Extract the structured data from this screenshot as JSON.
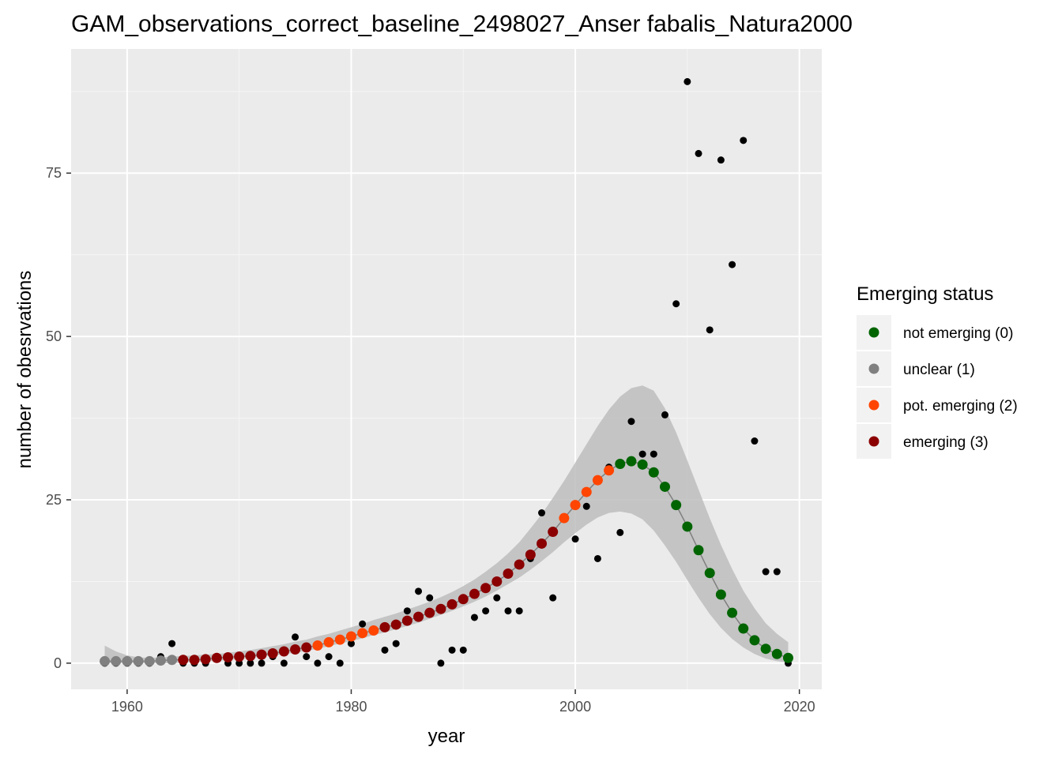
{
  "chart_data": {
    "type": "scatter",
    "title": "GAM_observations_correct_baseline_2498027_Anser fabalis_Natura2000",
    "xlabel": "year",
    "ylabel": "number of obesrvations",
    "xlim": [
      1955,
      2022
    ],
    "ylim": [
      -4,
      94
    ],
    "x_ticks": [
      1960,
      1980,
      2000,
      2020
    ],
    "y_ticks": [
      0,
      25,
      50,
      75
    ],
    "grid": true,
    "legend_position": "right",
    "colors": {
      "panel_bg": "#ebebeb",
      "grid_major": "#ffffff",
      "grid_minor": "#f5f5f5",
      "ribbon": "#bdbdbd",
      "line": "#7f7f7f",
      "observations": "#000000"
    },
    "legend": {
      "title": "Emerging status",
      "entries": [
        {
          "label": "not emerging (0)",
          "color": "#006400"
        },
        {
          "label": "unclear (1)",
          "color": "#808080"
        },
        {
          "label": "pot. emerging (2)",
          "color": "#ff4500"
        },
        {
          "label": "emerging (3)",
          "color": "#8b0000"
        }
      ]
    },
    "observations": {
      "x": [
        1958,
        1959,
        1960,
        1961,
        1962,
        1963,
        1964,
        1965,
        1966,
        1967,
        1968,
        1969,
        1970,
        1971,
        1972,
        1973,
        1974,
        1975,
        1976,
        1977,
        1978,
        1979,
        1980,
        1981,
        1983,
        1984,
        1985,
        1986,
        1987,
        1988,
        1989,
        1990,
        1991,
        1992,
        1993,
        1994,
        1995,
        1996,
        1997,
        1998,
        2000,
        2001,
        2002,
        2003,
        2004,
        2005,
        2006,
        2007,
        2008,
        2009,
        2010,
        2011,
        2012,
        2013,
        2014,
        2015,
        2016,
        2017,
        2018,
        2019
      ],
      "y": [
        0,
        0,
        0,
        0,
        0,
        1,
        3,
        0,
        0,
        0,
        1,
        0,
        0,
        0,
        0,
        1,
        0,
        4,
        1,
        0,
        1,
        0,
        3,
        6,
        2,
        3,
        8,
        11,
        10,
        0,
        2,
        2,
        7,
        8,
        10,
        8,
        8,
        16,
        23,
        10,
        19,
        24,
        16,
        30,
        20,
        37,
        32,
        32,
        38,
        55,
        89,
        78,
        51,
        77,
        61,
        80,
        34,
        14,
        14,
        0
      ]
    },
    "fit": {
      "x": [
        1958,
        1959,
        1960,
        1961,
        1962,
        1963,
        1964,
        1965,
        1966,
        1967,
        1968,
        1969,
        1970,
        1971,
        1972,
        1973,
        1974,
        1975,
        1976,
        1977,
        1978,
        1979,
        1980,
        1981,
        1982,
        1983,
        1984,
        1985,
        1986,
        1987,
        1988,
        1989,
        1990,
        1991,
        1992,
        1993,
        1994,
        1995,
        1996,
        1997,
        1998,
        1999,
        2000,
        2001,
        2002,
        2003,
        2004,
        2005,
        2006,
        2007,
        2008,
        2009,
        2010,
        2011,
        2012,
        2013,
        2014,
        2015,
        2016,
        2017,
        2018,
        2019
      ],
      "y": [
        0.3,
        0.3,
        0.3,
        0.3,
        0.3,
        0.4,
        0.5,
        0.5,
        0.5,
        0.6,
        0.8,
        0.9,
        1.0,
        1.1,
        1.3,
        1.5,
        1.8,
        2.1,
        2.4,
        2.7,
        3.2,
        3.6,
        4.1,
        4.6,
        5.0,
        5.5,
        5.9,
        6.5,
        7.1,
        7.7,
        8.3,
        9.0,
        9.8,
        10.6,
        11.5,
        12.5,
        13.7,
        15.1,
        16.6,
        18.3,
        20.1,
        22.2,
        24.2,
        26.2,
        28.0,
        29.5,
        30.5,
        30.9,
        30.4,
        29.2,
        27.0,
        24.2,
        20.9,
        17.3,
        13.8,
        10.5,
        7.7,
        5.3,
        3.5,
        2.2,
        1.4,
        0.8
      ],
      "status": [
        1,
        1,
        1,
        1,
        1,
        1,
        1,
        3,
        3,
        3,
        3,
        3,
        3,
        3,
        3,
        3,
        3,
        3,
        3,
        2,
        2,
        2,
        2,
        2,
        2,
        3,
        3,
        3,
        3,
        3,
        3,
        3,
        3,
        3,
        3,
        3,
        3,
        3,
        3,
        3,
        3,
        2,
        2,
        2,
        2,
        2,
        0,
        0,
        0,
        0,
        0,
        0,
        0,
        0,
        0,
        0,
        0,
        0,
        0,
        0,
        0,
        0
      ],
      "ci_lower": [
        0,
        0,
        0,
        0,
        0,
        0,
        0,
        0.1,
        0.2,
        0.3,
        0.4,
        0.5,
        0.7,
        0.8,
        1.0,
        1.2,
        1.4,
        1.6,
        1.9,
        2.2,
        2.6,
        3.0,
        3.4,
        3.8,
        4.3,
        4.7,
        5.2,
        5.7,
        6.2,
        6.8,
        7.4,
        8.0,
        8.7,
        9.4,
        10.2,
        11.1,
        12.1,
        13.1,
        14.3,
        15.6,
        17.0,
        18.5,
        19.9,
        21.2,
        22.3,
        23.0,
        23.2,
        22.9,
        22.0,
        20.3,
        18.0,
        15.5,
        12.7,
        10.0,
        7.5,
        5.4,
        3.7,
        2.4,
        1.4,
        0.7,
        0.3,
        0.1
      ],
      "ci_upper": [
        2.7,
        1.8,
        1.2,
        0.9,
        0.8,
        0.9,
        1.0,
        1.1,
        1.2,
        1.3,
        1.4,
        1.6,
        1.8,
        2.0,
        2.3,
        2.6,
        2.9,
        3.3,
        3.6,
        4.1,
        4.5,
        5.0,
        5.5,
        6.0,
        6.6,
        7.1,
        7.6,
        8.2,
        8.8,
        9.4,
        10.1,
        10.9,
        11.8,
        12.8,
        14.0,
        15.3,
        16.8,
        18.5,
        20.6,
        22.8,
        25.3,
        27.9,
        30.7,
        33.5,
        36.3,
        38.8,
        40.8,
        42.1,
        42.5,
        41.7,
        39.0,
        35.3,
        31.0,
        26.6,
        22.2,
        18.1,
        14.4,
        11.1,
        8.4,
        6.1,
        4.5,
        3.2
      ]
    }
  }
}
